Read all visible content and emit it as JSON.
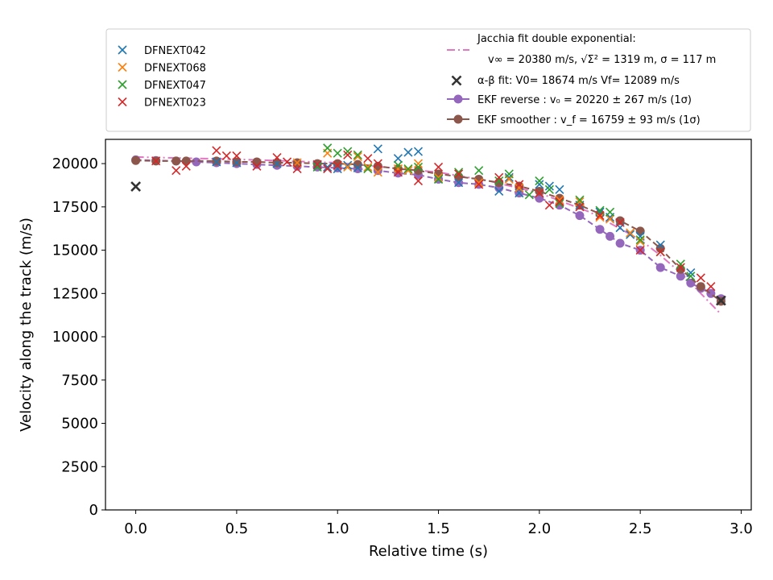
{
  "chart_data": {
    "type": "scatter",
    "xlabel": "Relative time (s)",
    "ylabel": "Velocity along the track (m/s)",
    "xlim": [
      -0.15,
      3.05
    ],
    "ylim": [
      0,
      21400
    ],
    "xticks": [
      0.0,
      0.5,
      1.0,
      1.5,
      2.0,
      2.5,
      3.0
    ],
    "xtick_labels": [
      "0.0",
      "0.5",
      "1.0",
      "1.5",
      "2.0",
      "2.5",
      "3.0"
    ],
    "yticks": [
      0,
      2500,
      5000,
      7500,
      10000,
      12500,
      15000,
      17500,
      20000
    ],
    "ytick_labels": [
      "0",
      "2500",
      "5000",
      "7500",
      "10000",
      "12500",
      "15000",
      "17500",
      "20000"
    ],
    "grid": false,
    "legend_position": "above plot",
    "series": [
      {
        "name": "DFNEXT042",
        "color": "#1f77b4",
        "marker": "x",
        "x": [
          0.4,
          0.5,
          0.7,
          0.9,
          0.95,
          1.0,
          1.05,
          1.1,
          1.2,
          1.3,
          1.35,
          1.4,
          1.5,
          1.6,
          1.7,
          1.8,
          1.85,
          1.9,
          2.0,
          2.05,
          2.1,
          2.2,
          2.3,
          2.35,
          2.4,
          2.45,
          2.5,
          2.6,
          2.75
        ],
        "y": [
          20100,
          20050,
          20000,
          19900,
          19800,
          19700,
          19900,
          19750,
          20850,
          20300,
          20650,
          20700,
          19100,
          18900,
          18900,
          18400,
          19200,
          18300,
          18800,
          18700,
          18500,
          17600,
          17200,
          16900,
          16300,
          15900,
          15800,
          15300,
          13700
        ]
      },
      {
        "name": "DFNEXT068",
        "color": "#ff7f0e",
        "marker": "x",
        "x": [
          0.8,
          0.95,
          1.0,
          1.05,
          1.1,
          1.15,
          1.2,
          1.3,
          1.35,
          1.4,
          1.5,
          1.7,
          1.85,
          1.9,
          2.0,
          2.1,
          2.2,
          2.3,
          2.35,
          2.45,
          2.5
        ],
        "y": [
          20050,
          20600,
          19900,
          19800,
          20400,
          19800,
          19500,
          19700,
          19600,
          20000,
          19200,
          18900,
          19100,
          18600,
          18300,
          17900,
          17800,
          16900,
          16800,
          16000,
          15500
        ]
      },
      {
        "name": "DFNEXT047",
        "color": "#2ca02c",
        "marker": "x",
        "x": [
          0.9,
          0.95,
          1.0,
          1.05,
          1.1,
          1.15,
          1.3,
          1.35,
          1.4,
          1.5,
          1.6,
          1.7,
          1.8,
          1.85,
          1.95,
          2.0,
          2.05,
          2.1,
          2.2,
          2.3,
          2.35,
          2.5,
          2.6,
          2.7,
          2.75
        ],
        "y": [
          19800,
          20900,
          20600,
          20700,
          20500,
          19700,
          19900,
          19700,
          19800,
          19100,
          19500,
          19600,
          19000,
          19400,
          18200,
          19000,
          18500,
          17700,
          17900,
          17300,
          17200,
          15600,
          14900,
          14200,
          13500
        ]
      },
      {
        "name": "DFNEXT023",
        "color": "#d62728",
        "marker": "x",
        "x": [
          0.1,
          0.2,
          0.25,
          0.4,
          0.45,
          0.5,
          0.6,
          0.7,
          0.75,
          0.8,
          0.9,
          0.95,
          1.0,
          1.05,
          1.15,
          1.2,
          1.3,
          1.4,
          1.5,
          1.6,
          1.7,
          1.8,
          1.9,
          2.0,
          2.05,
          2.1,
          2.2,
          2.3,
          2.4,
          2.5,
          2.6,
          2.7,
          2.8,
          2.85,
          2.9
        ],
        "y": [
          20150,
          19600,
          19850,
          20750,
          20450,
          20450,
          19850,
          20350,
          20100,
          19700,
          19950,
          19700,
          19900,
          20500,
          20300,
          20000,
          19500,
          19000,
          19800,
          19400,
          18800,
          19200,
          18800,
          18300,
          17600,
          17800,
          17500,
          17000,
          16600,
          15000,
          14900,
          14000,
          13400,
          12900,
          12100
        ]
      },
      {
        "name": "EKF reverse : v₀ =  20220 ± 267 m/s (1σ)",
        "color": "#9467bd",
        "marker": "o",
        "line": "dashed",
        "x": [
          0.0,
          0.1,
          0.2,
          0.3,
          0.4,
          0.5,
          0.6,
          0.7,
          0.8,
          0.9,
          1.0,
          1.1,
          1.2,
          1.3,
          1.4,
          1.5,
          1.6,
          1.7,
          1.8,
          1.9,
          2.0,
          2.1,
          2.2,
          2.3,
          2.35,
          2.4,
          2.5,
          2.6,
          2.7,
          2.75,
          2.8,
          2.85,
          2.9
        ],
        "y": [
          20220,
          20180,
          20150,
          20100,
          20050,
          20000,
          19950,
          19900,
          19850,
          19800,
          19750,
          19700,
          19600,
          19450,
          19350,
          19100,
          18900,
          18800,
          18600,
          18300,
          18000,
          17600,
          17000,
          16200,
          15800,
          15400,
          15000,
          14000,
          13500,
          13100,
          12800,
          12500,
          12200
        ]
      },
      {
        "name": "EKF smoother : v_f =  16759 ± 93 m/s (1σ)",
        "color": "#8c564b",
        "marker": "o",
        "line": "dashed",
        "x": [
          0.0,
          0.1,
          0.2,
          0.25,
          0.4,
          0.5,
          0.6,
          0.7,
          0.8,
          0.9,
          1.0,
          1.1,
          1.2,
          1.3,
          1.4,
          1.5,
          1.6,
          1.7,
          1.8,
          1.9,
          2.0,
          2.1,
          2.2,
          2.3,
          2.4,
          2.5,
          2.6,
          2.7,
          2.8,
          2.9
        ],
        "y": [
          20180,
          20150,
          20150,
          20150,
          20150,
          20100,
          20100,
          20050,
          20050,
          20000,
          20000,
          19950,
          19850,
          19700,
          19600,
          19400,
          19250,
          19100,
          18900,
          18700,
          18400,
          18000,
          17600,
          17100,
          16700,
          16100,
          15100,
          13900,
          12900,
          12050
        ]
      }
    ],
    "fits": [
      {
        "name": "Jacchia fit double exponential:",
        "name_line2": "v∞ = 20380 m/s, √Σ² = 1319 m, σ = 117 m",
        "color": "#e377c2",
        "line": "dashdot",
        "x": [
          0.0,
          0.5,
          1.0,
          1.5,
          1.75,
          2.0,
          2.25,
          2.5,
          2.6,
          2.7,
          2.8,
          2.9
        ],
        "y": [
          20380,
          20250,
          20050,
          19500,
          19000,
          18300,
          17200,
          15600,
          14700,
          13700,
          12500,
          11300
        ]
      }
    ],
    "alpha_beta_fit": {
      "name": "α-β fit: V0= 18674 m/s   Vf= 12089 m/s",
      "color": "#333333",
      "marker": "x",
      "x": [
        0.0,
        2.9
      ],
      "y": [
        18674,
        12089
      ]
    }
  }
}
